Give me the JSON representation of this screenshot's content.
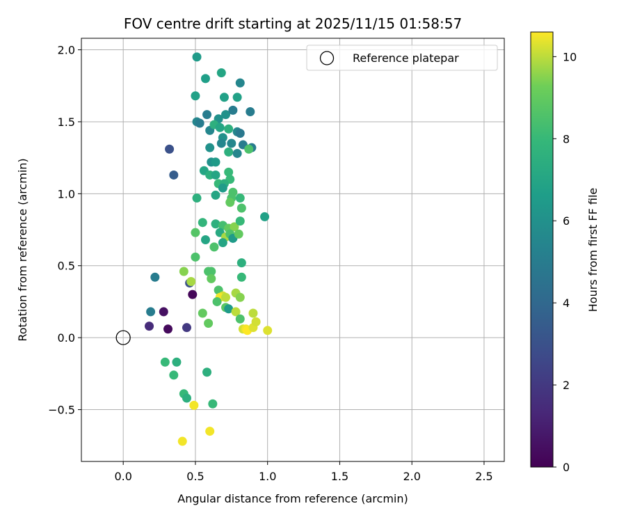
{
  "chart_data": {
    "type": "scatter",
    "title": "FOV centre drift starting at 2025/11/15 01:58:57",
    "xlabel": "Angular distance from reference (arcmin)",
    "ylabel": "Rotation from reference (arcmin)",
    "xlim": [
      -0.29,
      2.64
    ],
    "ylim": [
      -0.86,
      2.08
    ],
    "xticks": [
      0.0,
      0.5,
      1.0,
      1.5,
      2.0,
      2.5
    ],
    "xtick_labels": [
      "0.0",
      "0.5",
      "1.0",
      "1.5",
      "2.0",
      "2.5"
    ],
    "yticks": [
      -0.5,
      0.0,
      0.5,
      1.0,
      1.5,
      2.0
    ],
    "ytick_labels": [
      "−0.5",
      "0.0",
      "0.5",
      "1.0",
      "1.5",
      "2.0"
    ],
    "grid": true,
    "legend": {
      "placement": "top-right",
      "label": "Reference platepar"
    },
    "reference_point": {
      "x": 0.0,
      "y": 0.0
    },
    "colorbar": {
      "label": "Hours from first FF file",
      "range": [
        0,
        10.6
      ],
      "ticks": [
        0,
        2,
        4,
        6,
        8,
        10
      ],
      "tick_labels": [
        "0",
        "2",
        "4",
        "6",
        "8",
        "10"
      ],
      "colormap": "viridis"
    },
    "points": [
      [
        0.18,
        0.08,
        1.5
      ],
      [
        0.28,
        0.18,
        0.5
      ],
      [
        0.31,
        0.06,
        0.3
      ],
      [
        0.44,
        0.07,
        2.0
      ],
      [
        0.48,
        0.3,
        0.2
      ],
      [
        0.46,
        0.38,
        3.0
      ],
      [
        0.22,
        0.42,
        5.0
      ],
      [
        0.19,
        0.18,
        5.0
      ],
      [
        0.32,
        1.31,
        3.0
      ],
      [
        0.35,
        1.13,
        3.5
      ],
      [
        0.51,
        1.95,
        6.5
      ],
      [
        0.5,
        1.68,
        6.8
      ],
      [
        0.57,
        1.8,
        6.7
      ],
      [
        0.68,
        1.84,
        7.0
      ],
      [
        0.7,
        1.67,
        6.8
      ],
      [
        0.81,
        1.77,
        5.5
      ],
      [
        0.79,
        1.67,
        6.8
      ],
      [
        0.58,
        1.55,
        5.0
      ],
      [
        0.51,
        1.5,
        5.5
      ],
      [
        0.53,
        1.49,
        5.0
      ],
      [
        0.6,
        1.44,
        5.5
      ],
      [
        0.71,
        1.55,
        6.0
      ],
      [
        0.76,
        1.58,
        5.0
      ],
      [
        0.88,
        1.57,
        5.0
      ],
      [
        0.66,
        1.52,
        6.0
      ],
      [
        0.63,
        1.48,
        7.5
      ],
      [
        0.67,
        1.46,
        7.0
      ],
      [
        0.73,
        1.45,
        7.5
      ],
      [
        0.79,
        1.43,
        5.5
      ],
      [
        0.81,
        1.42,
        4.8
      ],
      [
        0.69,
        1.39,
        6.0
      ],
      [
        0.68,
        1.35,
        5.5
      ],
      [
        0.75,
        1.35,
        5.5
      ],
      [
        0.83,
        1.34,
        5.0
      ],
      [
        0.6,
        1.32,
        6.0
      ],
      [
        0.73,
        1.29,
        7.5
      ],
      [
        0.79,
        1.28,
        5.5
      ],
      [
        0.89,
        1.32,
        5.0
      ],
      [
        0.87,
        1.31,
        8.5
      ],
      [
        0.61,
        1.22,
        6.0
      ],
      [
        0.64,
        1.22,
        6.5
      ],
      [
        0.56,
        1.16,
        7.0
      ],
      [
        0.6,
        1.13,
        7.5
      ],
      [
        0.64,
        1.13,
        7.0
      ],
      [
        0.73,
        1.15,
        8.0
      ],
      [
        0.74,
        1.1,
        8.0
      ],
      [
        0.66,
        1.07,
        8.0
      ],
      [
        0.7,
        1.07,
        7.5
      ],
      [
        0.69,
        1.04,
        6.5
      ],
      [
        0.76,
        1.01,
        8.5
      ],
      [
        0.64,
        0.99,
        7.0
      ],
      [
        0.75,
        0.97,
        8.5
      ],
      [
        0.74,
        0.94,
        9.0
      ],
      [
        0.81,
        0.97,
        8.0
      ],
      [
        0.82,
        0.9,
        8.5
      ],
      [
        0.51,
        0.97,
        7.5
      ],
      [
        0.55,
        0.8,
        7.8
      ],
      [
        0.64,
        0.79,
        7.5
      ],
      [
        0.69,
        0.78,
        8.3
      ],
      [
        0.67,
        0.73,
        7.2
      ],
      [
        0.73,
        0.76,
        9.0
      ],
      [
        0.77,
        0.77,
        9.5
      ],
      [
        0.81,
        0.81,
        8.0
      ],
      [
        0.98,
        0.84,
        6.8
      ],
      [
        0.5,
        0.73,
        8.7
      ],
      [
        0.57,
        0.68,
        7.0
      ],
      [
        0.71,
        0.7,
        9.8
      ],
      [
        0.74,
        0.72,
        8.5
      ],
      [
        0.76,
        0.69,
        6.5
      ],
      [
        0.8,
        0.72,
        9.0
      ],
      [
        0.69,
        0.66,
        7.0
      ],
      [
        0.63,
        0.63,
        8.5
      ],
      [
        0.5,
        0.56,
        8.5
      ],
      [
        0.82,
        0.52,
        7.5
      ],
      [
        0.42,
        0.46,
        9.5
      ],
      [
        0.59,
        0.46,
        8.5
      ],
      [
        0.61,
        0.46,
        8.5
      ],
      [
        0.61,
        0.41,
        9.0
      ],
      [
        0.82,
        0.42,
        8.0
      ],
      [
        0.47,
        0.39,
        9.8
      ],
      [
        0.66,
        0.33,
        8.5
      ],
      [
        0.69,
        0.29,
        10.2
      ],
      [
        0.67,
        0.28,
        10.5
      ],
      [
        0.71,
        0.28,
        10.0
      ],
      [
        0.78,
        0.31,
        9.8
      ],
      [
        0.81,
        0.28,
        9.5
      ],
      [
        0.65,
        0.25,
        8.5
      ],
      [
        0.71,
        0.21,
        8.8
      ],
      [
        0.73,
        0.2,
        6.5
      ],
      [
        0.78,
        0.18,
        10.0
      ],
      [
        0.55,
        0.17,
        9.0
      ],
      [
        0.81,
        0.13,
        8.5
      ],
      [
        0.59,
        0.1,
        9.0
      ],
      [
        0.83,
        0.06,
        10.2
      ],
      [
        0.85,
        0.06,
        10.5
      ],
      [
        0.86,
        0.05,
        10.6
      ],
      [
        0.9,
        0.07,
        10.3
      ],
      [
        0.92,
        0.11,
        10.2
      ],
      [
        0.9,
        0.17,
        10.0
      ],
      [
        1.0,
        0.05,
        10.3
      ],
      [
        0.29,
        -0.17,
        8.0
      ],
      [
        0.37,
        -0.17,
        7.5
      ],
      [
        0.35,
        -0.26,
        8.0
      ],
      [
        0.58,
        -0.24,
        7.5
      ],
      [
        0.42,
        -0.39,
        8.0
      ],
      [
        0.44,
        -0.42,
        7.5
      ],
      [
        0.62,
        -0.46,
        8.0
      ],
      [
        0.49,
        -0.47,
        10.5
      ],
      [
        0.41,
        -0.72,
        10.5
      ],
      [
        0.6,
        -0.65,
        10.5
      ]
    ]
  }
}
